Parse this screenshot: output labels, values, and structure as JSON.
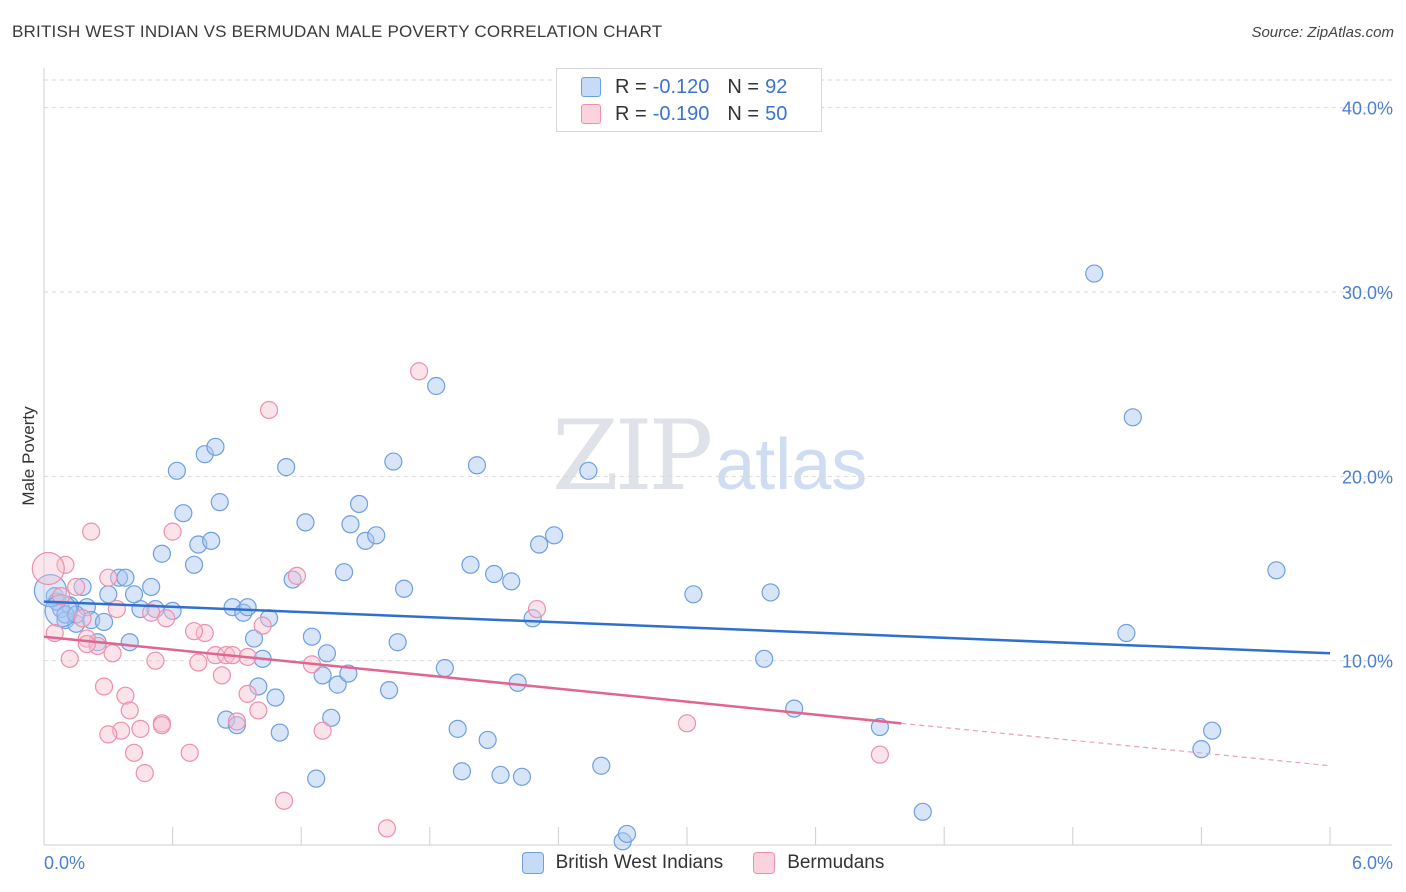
{
  "title": "BRITISH WEST INDIAN VS BERMUDAN MALE POVERTY CORRELATION CHART",
  "source": "Source: ZipAtlas.com",
  "watermark": {
    "zip": "ZIP",
    "atlas": "atlas"
  },
  "legend": [
    {
      "r_label": "R = ",
      "r_value": "-0.120",
      "n_label": "N = ",
      "n_value": "92",
      "color": "#a9c6f0",
      "border": "#6e9fe0"
    },
    {
      "r_label": "R = ",
      "r_value": "-0.190",
      "n_label": "N = ",
      "n_value": "50",
      "color": "#f7c1d1",
      "border": "#ee8fac"
    }
  ],
  "series_names": [
    "British West Indians",
    "Bermudans"
  ],
  "chart_data": {
    "type": "scatter",
    "xlabel": "",
    "ylabel": "Male Poverty",
    "xlim": [
      0,
      6
    ],
    "ylim": [
      0,
      41.5
    ],
    "x_tick_labels": [
      {
        "x": 0,
        "label": "0.0%"
      },
      {
        "x": 6,
        "label": "6.0%"
      }
    ],
    "y_tick_labels": [
      {
        "y": 10,
        "label": "10.0%"
      },
      {
        "y": 20,
        "label": "20.0%"
      },
      {
        "y": 30,
        "label": "30.0%"
      },
      {
        "y": 40,
        "label": "40.0%"
      }
    ],
    "grid": true,
    "legend_position": "top-center",
    "series": [
      {
        "name": "British West Indians",
        "color": "#6e9fe0",
        "fill": "#a9c6f0",
        "trend": {
          "x0": 0,
          "y0": 13.2,
          "x1": 6,
          "y1": 10.4
        },
        "points": [
          [
            0.05,
            13.5
          ],
          [
            0.08,
            12.8
          ],
          [
            0.1,
            12.2
          ],
          [
            0.12,
            13.0
          ],
          [
            0.15,
            12.0
          ],
          [
            0.18,
            14.0
          ],
          [
            0.2,
            12.9
          ],
          [
            0.22,
            12.2
          ],
          [
            0.25,
            11.0
          ],
          [
            0.3,
            13.6
          ],
          [
            0.35,
            14.5
          ],
          [
            0.38,
            14.5
          ],
          [
            0.4,
            11.0
          ],
          [
            0.45,
            12.8
          ],
          [
            0.5,
            14.0
          ],
          [
            0.55,
            15.8
          ],
          [
            0.6,
            12.7
          ],
          [
            0.62,
            20.3
          ],
          [
            0.65,
            18.0
          ],
          [
            0.7,
            15.2
          ],
          [
            0.72,
            16.3
          ],
          [
            0.75,
            21.2
          ],
          [
            0.78,
            16.5
          ],
          [
            0.8,
            21.6
          ],
          [
            0.82,
            18.6
          ],
          [
            0.85,
            6.8
          ],
          [
            0.88,
            12.9
          ],
          [
            0.9,
            6.5
          ],
          [
            0.93,
            12.6
          ],
          [
            0.95,
            12.9
          ],
          [
            0.98,
            11.2
          ],
          [
            1.0,
            8.6
          ],
          [
            1.02,
            10.1
          ],
          [
            1.05,
            12.3
          ],
          [
            1.08,
            8.0
          ],
          [
            1.1,
            6.1
          ],
          [
            1.13,
            20.5
          ],
          [
            1.16,
            14.4
          ],
          [
            1.22,
            17.5
          ],
          [
            1.25,
            11.3
          ],
          [
            1.27,
            3.6
          ],
          [
            1.3,
            9.2
          ],
          [
            1.32,
            10.4
          ],
          [
            1.34,
            6.9
          ],
          [
            1.37,
            8.7
          ],
          [
            1.4,
            14.8
          ],
          [
            1.42,
            9.3
          ],
          [
            1.43,
            17.4
          ],
          [
            1.47,
            18.5
          ],
          [
            1.5,
            16.5
          ],
          [
            1.55,
            16.8
          ],
          [
            1.61,
            8.4
          ],
          [
            1.63,
            20.8
          ],
          [
            1.65,
            11.0
          ],
          [
            1.68,
            13.9
          ],
          [
            1.83,
            24.9
          ],
          [
            1.87,
            9.6
          ],
          [
            1.93,
            6.3
          ],
          [
            1.95,
            4.0
          ],
          [
            1.99,
            15.2
          ],
          [
            2.02,
            20.6
          ],
          [
            2.07,
            5.7
          ],
          [
            2.1,
            14.7
          ],
          [
            2.13,
            3.8
          ],
          [
            2.18,
            14.3
          ],
          [
            2.21,
            8.8
          ],
          [
            2.23,
            3.7
          ],
          [
            2.28,
            12.3
          ],
          [
            2.31,
            16.3
          ],
          [
            2.38,
            16.8
          ],
          [
            2.54,
            20.3
          ],
          [
            2.6,
            4.3
          ],
          [
            2.7,
            0.2
          ],
          [
            2.72,
            0.6
          ],
          [
            3.03,
            13.6
          ],
          [
            3.36,
            10.1
          ],
          [
            3.39,
            13.7
          ],
          [
            3.5,
            7.4
          ],
          [
            3.9,
            6.4
          ],
          [
            4.1,
            1.8
          ],
          [
            4.9,
            31.0
          ],
          [
            5.05,
            11.5
          ],
          [
            5.08,
            23.2
          ],
          [
            5.4,
            5.2
          ],
          [
            5.45,
            6.2
          ],
          [
            5.75,
            14.9
          ],
          [
            0.06,
            13.2
          ],
          [
            0.1,
            12.5
          ],
          [
            0.15,
            12.5
          ],
          [
            0.28,
            12.1
          ],
          [
            0.42,
            13.6
          ],
          [
            0.52,
            12.8
          ]
        ],
        "big_points": [
          [
            0.03,
            13.8
          ],
          [
            0.08,
            12.7
          ]
        ]
      },
      {
        "name": "Bermudans",
        "color": "#ee8fac",
        "fill": "#f7c1d1",
        "trend": {
          "x0": 0,
          "y0": 11.3,
          "x1": 4.0,
          "y1": 6.6
        },
        "trend_dashed": {
          "x0": 4.0,
          "y0": 6.6,
          "x1": 6,
          "y1": 4.3
        },
        "points": [
          [
            0.05,
            11.5
          ],
          [
            0.08,
            13.5
          ],
          [
            0.1,
            15.2
          ],
          [
            0.12,
            10.1
          ],
          [
            0.15,
            14.0
          ],
          [
            0.18,
            12.3
          ],
          [
            0.2,
            11.2
          ],
          [
            0.22,
            17.0
          ],
          [
            0.25,
            10.8
          ],
          [
            0.28,
            8.6
          ],
          [
            0.3,
            14.5
          ],
          [
            0.32,
            10.4
          ],
          [
            0.34,
            12.8
          ],
          [
            0.36,
            6.2
          ],
          [
            0.38,
            8.1
          ],
          [
            0.4,
            7.3
          ],
          [
            0.42,
            5.0
          ],
          [
            0.45,
            6.3
          ],
          [
            0.47,
            3.9
          ],
          [
            0.5,
            12.6
          ],
          [
            0.52,
            10.0
          ],
          [
            0.55,
            6.6
          ],
          [
            0.57,
            12.3
          ],
          [
            0.6,
            17.0
          ],
          [
            0.68,
            5.0
          ],
          [
            0.72,
            9.9
          ],
          [
            0.75,
            11.5
          ],
          [
            0.8,
            10.3
          ],
          [
            0.83,
            9.2
          ],
          [
            0.85,
            10.3
          ],
          [
            0.9,
            6.7
          ],
          [
            0.95,
            8.2
          ],
          [
            1.0,
            7.3
          ],
          [
            1.02,
            11.9
          ],
          [
            1.05,
            23.6
          ],
          [
            1.12,
            2.4
          ],
          [
            1.18,
            14.6
          ],
          [
            1.25,
            9.8
          ],
          [
            1.3,
            6.2
          ],
          [
            1.6,
            0.9
          ],
          [
            1.75,
            25.7
          ],
          [
            2.3,
            12.8
          ],
          [
            3.0,
            6.6
          ],
          [
            3.9,
            4.9
          ],
          [
            0.2,
            10.9
          ],
          [
            0.3,
            6.0
          ],
          [
            0.55,
            6.5
          ],
          [
            0.7,
            11.6
          ],
          [
            0.88,
            10.3
          ],
          [
            0.95,
            10.2
          ]
        ],
        "big_points": [
          [
            0.02,
            15.0
          ]
        ]
      }
    ]
  }
}
